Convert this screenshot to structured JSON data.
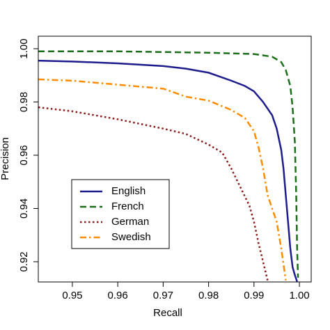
{
  "chart_data": {
    "type": "line",
    "xlabel": "Recall",
    "ylabel": "Precision",
    "xlim": [
      0.9425,
      1.0026
    ],
    "ylim": [
      0.9124,
      1.0047
    ],
    "xticks": [
      0.95,
      0.96,
      0.97,
      0.98,
      0.99,
      {
        "value": 1.0,
        "label": "1.00"
      }
    ],
    "yticks": [
      0.92,
      0.94,
      0.96,
      0.98,
      {
        "value": 1.0,
        "label": "1.00"
      }
    ],
    "legend": "lower-left",
    "series": [
      {
        "name": "English",
        "color": "#1c1c8c",
        "dash": "solid",
        "x": [
          0.9425,
          0.95,
          0.96,
          0.97,
          0.975,
          0.98,
          0.985,
          0.988,
          0.99,
          0.992,
          0.994,
          0.995,
          0.996,
          0.9965,
          0.997,
          0.9975,
          0.998,
          0.9985,
          0.999,
          0.9995
        ],
        "values": [
          0.9955,
          0.9952,
          0.9945,
          0.9935,
          0.9925,
          0.991,
          0.988,
          0.986,
          0.984,
          0.98,
          0.975,
          0.97,
          0.962,
          0.955,
          0.945,
          0.935,
          0.925,
          0.918,
          0.915,
          0.9125
        ]
      },
      {
        "name": "French",
        "color": "#1a6e1a",
        "dash": "dashed",
        "x": [
          0.9425,
          0.96,
          0.98,
          0.99,
          0.994,
          0.996,
          0.997,
          0.998,
          0.9985,
          0.999,
          0.9993,
          0.9995,
          0.9997
        ],
        "values": [
          0.999,
          0.999,
          0.9985,
          0.998,
          0.997,
          0.995,
          0.992,
          0.986,
          0.978,
          0.965,
          0.945,
          0.925,
          0.914
        ]
      },
      {
        "name": "German",
        "color": "#8b1a1a",
        "dash": "dotted",
        "x": [
          0.9425,
          0.95,
          0.96,
          0.97,
          0.975,
          0.98,
          0.983,
          0.985,
          0.987,
          0.989,
          0.99,
          0.991,
          0.992,
          0.993
        ],
        "values": [
          0.978,
          0.9765,
          0.9735,
          0.97,
          0.968,
          0.964,
          0.961,
          0.955,
          0.948,
          0.941,
          0.935,
          0.927,
          0.92,
          0.913
        ]
      },
      {
        "name": "Swedish",
        "color": "#ff8c00",
        "dash": "dashdot",
        "x": [
          0.9425,
          0.95,
          0.96,
          0.97,
          0.975,
          0.98,
          0.985,
          0.988,
          0.99,
          0.991,
          0.992,
          0.993,
          0.995,
          0.996,
          0.997
        ],
        "values": [
          0.9885,
          0.988,
          0.9865,
          0.985,
          0.982,
          0.9805,
          0.977,
          0.974,
          0.969,
          0.963,
          0.955,
          0.945,
          0.935,
          0.925,
          0.913
        ]
      }
    ]
  }
}
